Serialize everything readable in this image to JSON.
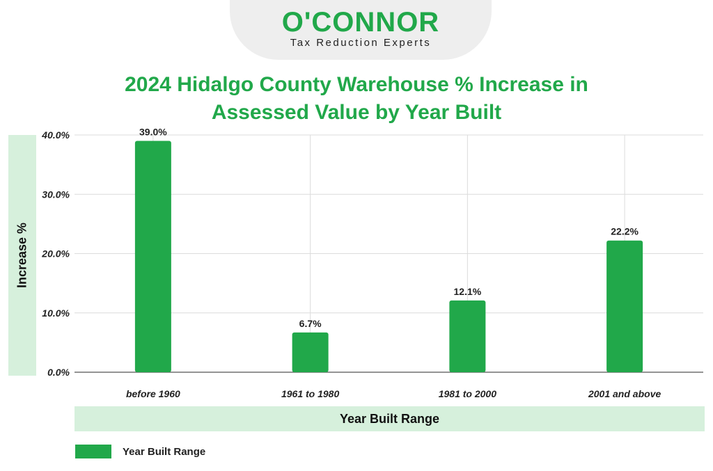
{
  "logo": {
    "name": "O'CONNOR",
    "tagline": "Tax Reduction Experts"
  },
  "colors": {
    "brand": "#21a84a",
    "band": "#d6f0dc",
    "bar": "#21a84a"
  },
  "chart_data": {
    "type": "bar",
    "title": "2024 Hidalgo County Warehouse % Increase in Assessed Value by Year Built",
    "xlabel": "Year Built Range",
    "ylabel": "Increase %",
    "categories": [
      "before 1960",
      "1961 to 1980",
      "1981 to 2000",
      "2001 and above"
    ],
    "series": [
      {
        "name": "Year Built Range",
        "values": [
          39.0,
          6.7,
          12.1,
          22.2
        ]
      }
    ],
    "data_labels": [
      "39.0%",
      "6.7%",
      "12.1%",
      "22.2%"
    ],
    "yticks": [
      0,
      10,
      20,
      30,
      40
    ],
    "ytick_labels": [
      "0.0%",
      "10.0%",
      "20.0%",
      "30.0%",
      "40.0%"
    ],
    "ylim": [
      0,
      40
    ],
    "grid": true,
    "legend_position": "bottom-left"
  }
}
